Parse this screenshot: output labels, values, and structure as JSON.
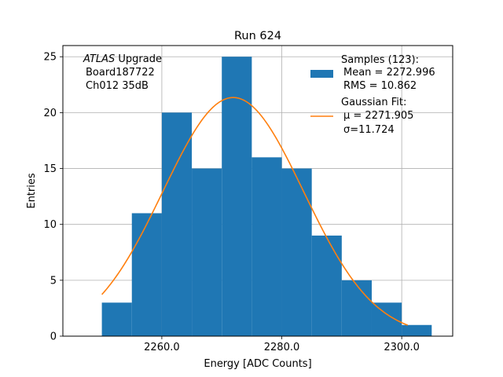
{
  "chart_data": {
    "type": "bar",
    "title": "Run 624",
    "xlabel": "Energy [ADC Counts]",
    "ylabel": "Entries",
    "xlim": [
      2243.5,
      2308.5
    ],
    "ylim": [
      0,
      26
    ],
    "grid": true,
    "x_ticks": [
      2260,
      2280,
      2300
    ],
    "x_tick_labels": [
      "2260.0",
      "2280.0",
      "2300.0"
    ],
    "y_ticks": [
      0,
      5,
      10,
      15,
      20,
      25
    ],
    "y_tick_labels": [
      "0",
      "5",
      "10",
      "15",
      "20",
      "25"
    ],
    "histogram": {
      "bin_edges": [
        2250,
        2255,
        2260,
        2265,
        2270,
        2275,
        2280,
        2285,
        2290,
        2295,
        2300,
        2305
      ],
      "counts": [
        3,
        11,
        20,
        15,
        25,
        16,
        15,
        9,
        5,
        3,
        1
      ],
      "color": "#1f77b4"
    },
    "fit": {
      "type": "gaussian",
      "amplitude": 21.35,
      "mu": 2271.905,
      "sigma": 11.724,
      "x_range": [
        2250,
        2301
      ],
      "color": "#ff7f0e"
    },
    "annotation": {
      "line1_italic": "ATLAS",
      "line1_rest": " Upgrade",
      "line2": "Board187722",
      "line3": "Ch012 35dB"
    },
    "legend": {
      "position": "top-right",
      "hist_lines": [
        "Samples (123):",
        "Mean = 2272.996",
        "RMS = 10.862"
      ],
      "fit_lines": [
        "Gaussian Fit:",
        "μ = 2271.905",
        "σ=11.724"
      ]
    }
  }
}
